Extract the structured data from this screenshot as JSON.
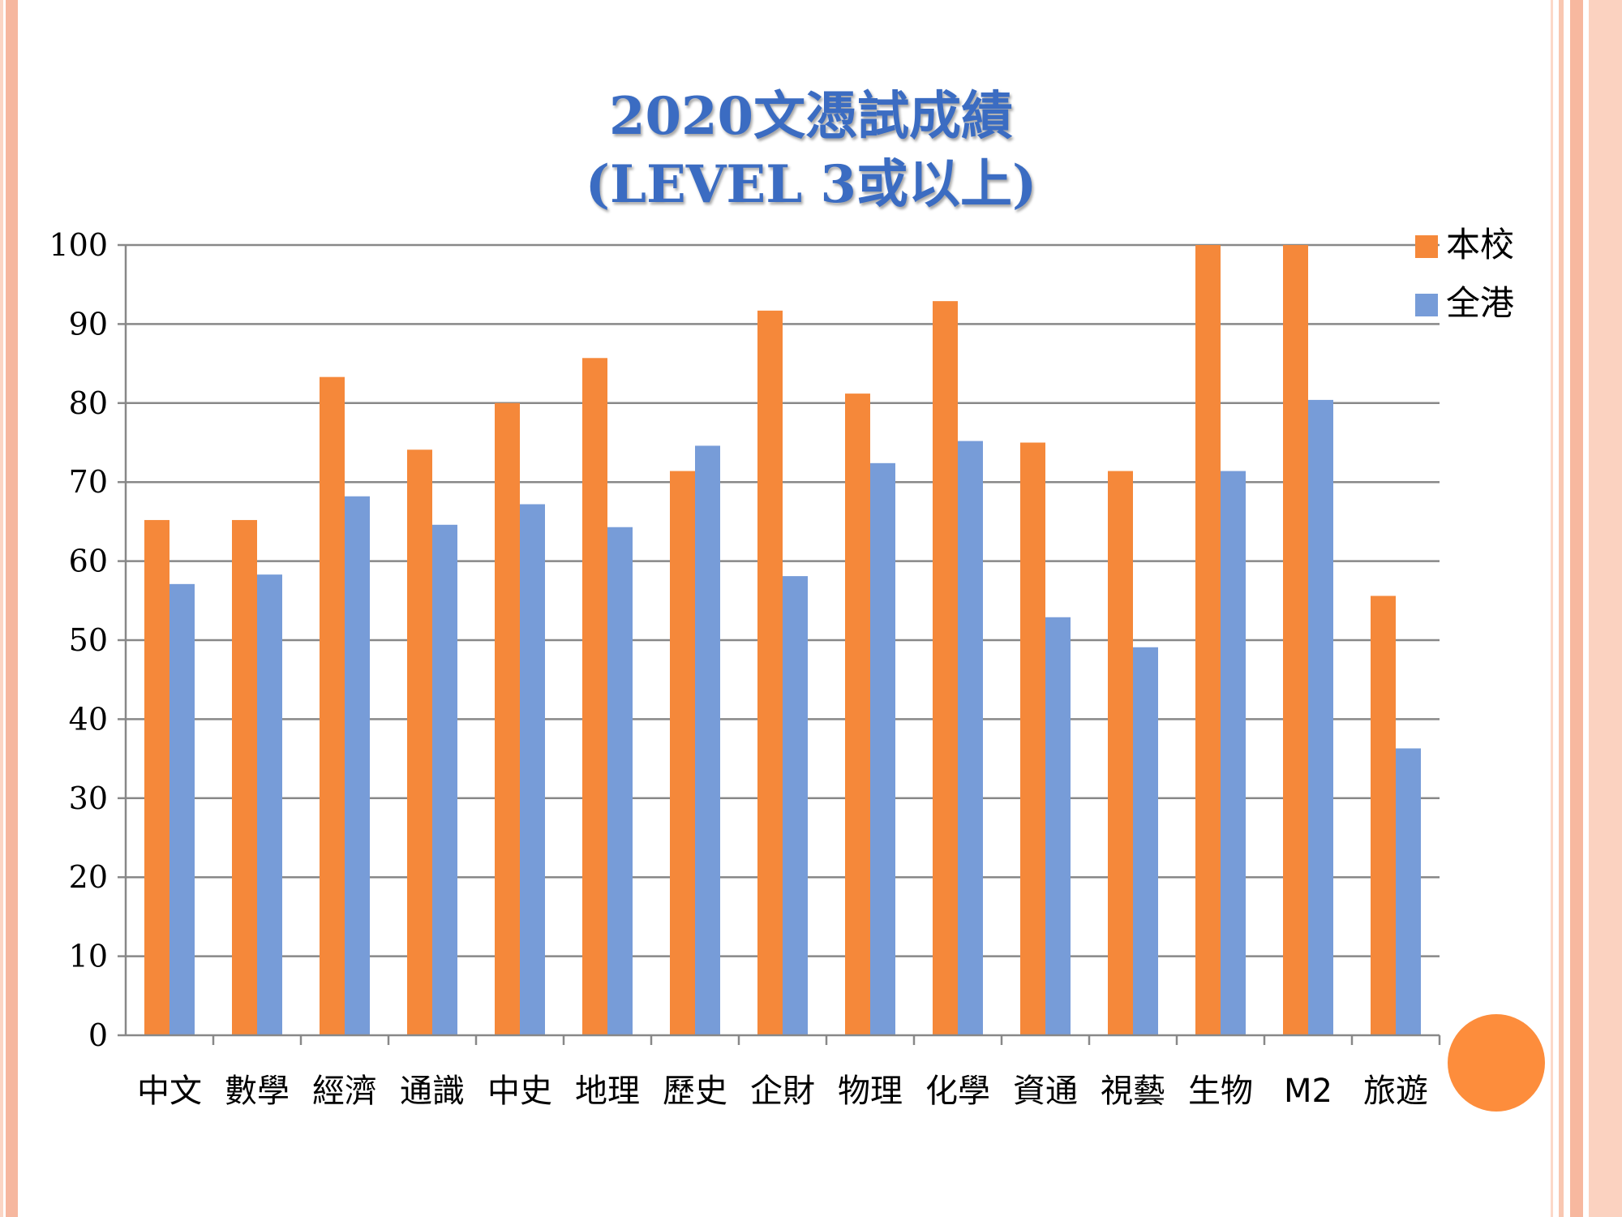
{
  "slide": {
    "title_line1": "2020文憑試成績",
    "title_line2": "(LEVEL 3或以上)"
  },
  "colors": {
    "school": "#f5883a",
    "hk": "#779cd8",
    "gridline": "#888888",
    "accent_circle": "#fd8d3c"
  },
  "chart_data": {
    "type": "bar",
    "title": "",
    "xlabel": "",
    "ylabel": "",
    "ylim": [
      0,
      100
    ],
    "yticks": [
      0,
      10,
      20,
      30,
      40,
      50,
      60,
      70,
      80,
      90,
      100
    ],
    "grid": true,
    "legend_position": "top-right",
    "categories": [
      "中文",
      "數學",
      "經濟",
      "通識",
      "中史",
      "地理",
      "歷史",
      "企財",
      "物理",
      "化學",
      "資通",
      "視藝",
      "生物",
      "M2",
      "旅遊"
    ],
    "series": [
      {
        "name": "本校",
        "values": [
          65.2,
          65.2,
          83.3,
          74.1,
          80,
          85.7,
          71.4,
          91.7,
          81.2,
          92.9,
          75,
          71.4,
          100,
          100,
          55.6
        ]
      },
      {
        "name": "全港",
        "values": [
          57.1,
          58.3,
          68.2,
          64.6,
          67.2,
          64.3,
          74.6,
          58.1,
          72.4,
          75.2,
          52.9,
          49.1,
          71.4,
          80.4,
          36.3
        ]
      }
    ]
  }
}
